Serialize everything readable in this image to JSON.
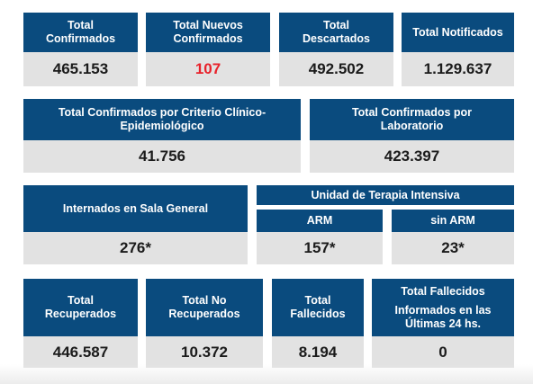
{
  "row1": [
    {
      "label_lines": [
        "Total",
        "Confirmados"
      ],
      "value": "465.153"
    },
    {
      "label_lines": [
        "Total Nuevos",
        "Confirmados"
      ],
      "value": "107"
    },
    {
      "label_lines": [
        "Total",
        "Descartados"
      ],
      "value": "492.502"
    },
    {
      "label_lines": [
        "Total Notificados"
      ],
      "value": "1.129.637"
    }
  ],
  "row2": [
    {
      "label_lines": [
        "Total Confirmados por Criterio Clínico-",
        "Epidemiológico"
      ],
      "value": "41.756"
    },
    {
      "label_lines": [
        "Total Confirmados por",
        "Laboratorio"
      ],
      "value": "423.397"
    }
  ],
  "row3": {
    "sala_general": {
      "label": "Internados en Sala General",
      "value": "276*"
    },
    "uti": {
      "title": "Unidad de Terapia Intensiva",
      "arm": {
        "label": "ARM",
        "value": "157*"
      },
      "sin_arm": {
        "label": "sin ARM",
        "value": "23*"
      }
    }
  },
  "row4": [
    {
      "label_lines": [
        "Total",
        "Recuperados"
      ],
      "value": "446.587"
    },
    {
      "label_lines": [
        "Total No",
        "Recuperados"
      ],
      "value": "10.372"
    },
    {
      "label_lines": [
        "Total",
        "Fallecidos"
      ],
      "value": "8.194"
    },
    {
      "label_lines": [
        "Total Fallecidos",
        "Informados en las",
        "Últimas 24 hs."
      ],
      "value": "0"
    }
  ],
  "colors": {
    "header": "#0a4b7e",
    "value_bg": "#e2e2e2",
    "value_text": "#1b1b1b",
    "highlight": "#e8222b"
  }
}
